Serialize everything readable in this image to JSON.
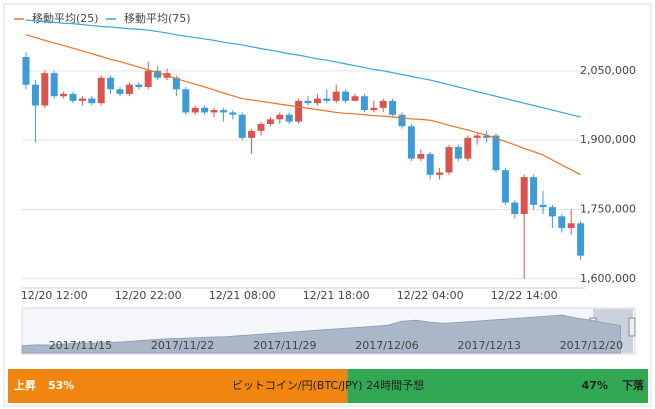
{
  "chart_data": [
    {
      "type": "candlestick",
      "categories": [
        null,
        null,
        null,
        "12/20 12:00",
        null,
        null,
        null,
        null,
        null,
        null,
        null,
        null,
        null,
        "12/20 22:00",
        null,
        null,
        null,
        null,
        null,
        null,
        null,
        null,
        null,
        "12/21 08:00",
        null,
        null,
        null,
        null,
        null,
        null,
        null,
        null,
        null,
        "12/21 18:00",
        null,
        null,
        null,
        null,
        null,
        null,
        null,
        null,
        null,
        "12/22 04:00",
        null,
        null,
        null,
        null,
        null,
        null,
        null,
        null,
        null,
        "12/22 14:00",
        null,
        null,
        null,
        null,
        null,
        null
      ],
      "open": [
        2080000,
        2020000,
        1975000,
        2045000,
        1995000,
        2000000,
        1985000,
        1990000,
        1980000,
        2035000,
        2010000,
        2000000,
        2020000,
        2015000,
        2050000,
        2035000,
        2035000,
        2010000,
        1960000,
        1970000,
        1960000,
        1965000,
        1960000,
        1955000,
        1905000,
        1920000,
        1935000,
        1945000,
        1955000,
        1940000,
        1985000,
        1980000,
        1990000,
        1985000,
        2005000,
        1985000,
        1995000,
        1965000,
        1970000,
        1985000,
        1955000,
        1930000,
        1860000,
        1870000,
        1825000,
        1830000,
        1885000,
        1860000,
        1905000,
        1910000,
        1910000,
        1835000,
        1765000,
        1740000,
        1820000,
        1760000,
        1755000,
        1735000,
        1710000,
        1720000
      ],
      "high": [
        2090000,
        2030000,
        2050000,
        2050000,
        2005000,
        2005000,
        1995000,
        1995000,
        2040000,
        2040000,
        2015000,
        2025000,
        2025000,
        2070000,
        2060000,
        2055000,
        2040000,
        2015000,
        1975000,
        1975000,
        1970000,
        1970000,
        1965000,
        1960000,
        1925000,
        1940000,
        1950000,
        1960000,
        1960000,
        1990000,
        1995000,
        2000000,
        2010000,
        2020000,
        2010000,
        2000000,
        2000000,
        1985000,
        1990000,
        1990000,
        1960000,
        1935000,
        1880000,
        1875000,
        1840000,
        1890000,
        1890000,
        1910000,
        1915000,
        1920000,
        1915000,
        1840000,
        1770000,
        1825000,
        1825000,
        1790000,
        1760000,
        1740000,
        1750000,
        1725000
      ],
      "low": [
        2010000,
        1895000,
        1970000,
        1990000,
        1990000,
        1980000,
        1975000,
        1975000,
        1975000,
        2000000,
        1995000,
        1995000,
        2010000,
        2010000,
        2030000,
        2030000,
        1995000,
        1955000,
        1955000,
        1955000,
        1950000,
        1940000,
        1945000,
        1900000,
        1870000,
        1910000,
        1930000,
        1935000,
        1935000,
        1935000,
        1975000,
        1975000,
        1980000,
        1980000,
        1980000,
        1985000,
        1960000,
        1960000,
        1960000,
        1950000,
        1925000,
        1855000,
        1855000,
        1815000,
        1815000,
        1825000,
        1855000,
        1855000,
        1890000,
        1895000,
        1830000,
        1760000,
        1730000,
        1600000,
        1750000,
        1740000,
        1710000,
        1700000,
        1695000,
        1640000
      ],
      "close": [
        2020000,
        1975000,
        2045000,
        1995000,
        2000000,
        1985000,
        1990000,
        1980000,
        2035000,
        2010000,
        2000000,
        2020000,
        2015000,
        2050000,
        2035000,
        2045000,
        2010000,
        1960000,
        1970000,
        1960000,
        1965000,
        1960000,
        1955000,
        1905000,
        1920000,
        1935000,
        1945000,
        1955000,
        1940000,
        1985000,
        1980000,
        1990000,
        1985000,
        2005000,
        1985000,
        1995000,
        1965000,
        1970000,
        1985000,
        1955000,
        1930000,
        1860000,
        1870000,
        1825000,
        1830000,
        1885000,
        1860000,
        1905000,
        1910000,
        1905000,
        1835000,
        1765000,
        1740000,
        1820000,
        1760000,
        1755000,
        1735000,
        1710000,
        1720000,
        1650000
      ],
      "up_color": "#d9534f",
      "down_color": "#3d9bd8",
      "series": [
        {
          "name": "移動平均(25)",
          "color": "#e8732c",
          "values": [
            2128000,
            2122000,
            2116000,
            2110000,
            2105000,
            2099000,
            2093000,
            2087000,
            2081000,
            2075000,
            2070000,
            2064000,
            2058000,
            2052000,
            2046000,
            2040000,
            2033000,
            2027000,
            2021000,
            2015000,
            2009000,
            2002000,
            1996000,
            1990000,
            1987000,
            1984000,
            1981000,
            1978000,
            1975000,
            1972000,
            1969000,
            1966000,
            1963000,
            1960000,
            1958000,
            1957000,
            1955000,
            1953000,
            1952000,
            1950000,
            1948000,
            1946000,
            1945000,
            1943000,
            1938000,
            1932000,
            1927000,
            1922000,
            1916000,
            1911000,
            1904000,
            1897000,
            1890000,
            1882000,
            1875000,
            1868000,
            1857000,
            1846000,
            1836000,
            1825000
          ]
        },
        {
          "name": "移動平均(75)",
          "color": "#3aa4dc",
          "values": [
            2160000,
            2158000,
            2157000,
            2155000,
            2153000,
            2152000,
            2150000,
            2148000,
            2146000,
            2145000,
            2143000,
            2141000,
            2140000,
            2138000,
            2135000,
            2132000,
            2128000,
            2125000,
            2122000,
            2119000,
            2116000,
            2112000,
            2109000,
            2106000,
            2102000,
            2098000,
            2095000,
            2091000,
            2087000,
            2084000,
            2080000,
            2076000,
            2073000,
            2069000,
            2065000,
            2061000,
            2057000,
            2053000,
            2050000,
            2046000,
            2042000,
            2038000,
            2034000,
            2030000,
            2025000,
            2020000,
            2015000,
            2010000,
            2005000,
            2000000,
            1995000,
            1990000,
            1985000,
            1980000,
            1975000,
            1970000,
            1965000,
            1960000,
            1955000,
            1950000
          ]
        }
      ],
      "ylim": [
        1580000,
        2160000
      ],
      "yticks": [
        {
          "value": 1600000,
          "label": "1,600,000"
        },
        {
          "value": 1750000,
          "label": "1,750,000"
        },
        {
          "value": 1900000,
          "label": "1,900,000"
        },
        {
          "value": 2050000,
          "label": "2,050,000"
        }
      ],
      "grid": true
    },
    {
      "type": "area",
      "categories": [
        null,
        null,
        null,
        null,
        "2017/11/15",
        null,
        null,
        null,
        null,
        null,
        null,
        "2017/11/22",
        null,
        null,
        null,
        null,
        null,
        null,
        "2017/11/29",
        null,
        null,
        null,
        null,
        null,
        null,
        "2017/12/06",
        null,
        null,
        null,
        null,
        null,
        null,
        "2017/12/13",
        null,
        null,
        null,
        null,
        null,
        null,
        "2017/12/20",
        null,
        null
      ],
      "values": [
        750000,
        800000,
        780000,
        850000,
        900000,
        880000,
        920000,
        950000,
        1000000,
        1050000,
        1100000,
        1120000,
        1150000,
        1180000,
        1200000,
        1250000,
        1300000,
        1350000,
        1400000,
        1450000,
        1500000,
        1550000,
        1600000,
        1650000,
        1700000,
        1750000,
        1950000,
        2000000,
        1900000,
        1850000,
        1900000,
        1950000,
        2000000,
        2050000,
        2100000,
        2150000,
        2200000,
        2250000,
        2100000,
        2000000,
        1850000,
        1750000
      ],
      "color": "#a9b7c8",
      "ylim": [
        400000,
        2400000
      ]
    }
  ],
  "prediction": {
    "title": "ビットコイン/円(BTC/JPY) 24時間予想",
    "up": {
      "label": "上昇",
      "value": 53,
      "value_label": "53%",
      "color": "#f0860f"
    },
    "down": {
      "label": "下落",
      "value": 47,
      "value_label": "47%",
      "color": "#33a854"
    }
  }
}
